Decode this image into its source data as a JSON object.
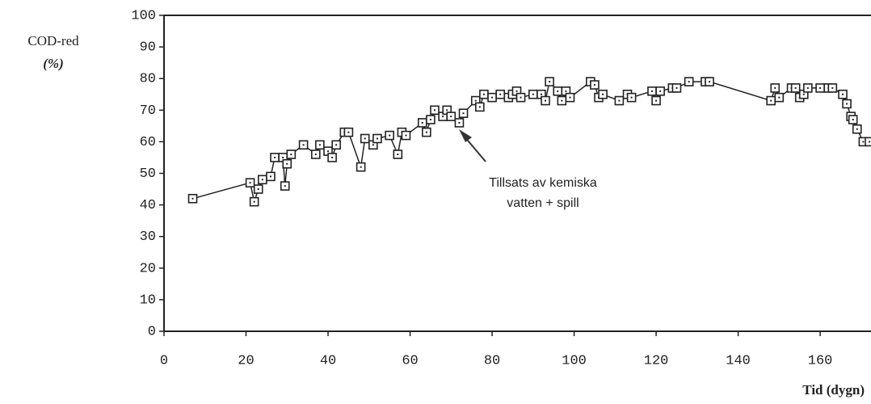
{
  "chart_data": {
    "type": "line",
    "y_label": [
      "COD-red",
      "(%)"
    ],
    "x_label": "Tid (dygn)",
    "annotation": [
      "Tillsats av kemiska",
      "vatten + spill"
    ],
    "series": [
      {
        "name": "COD-red",
        "color": "#222222",
        "x": [
          7,
          21,
          22,
          23,
          24,
          26,
          27,
          29,
          29.5,
          30,
          31,
          34,
          37,
          38,
          40,
          41,
          42,
          44,
          45,
          48,
          49,
          51,
          52,
          55,
          57,
          58,
          59,
          63,
          64,
          65,
          66,
          68,
          69,
          70,
          72,
          73,
          76,
          77,
          78,
          80,
          82,
          84,
          85,
          86,
          87,
          90,
          92,
          93,
          94,
          96,
          97,
          98,
          99,
          104,
          105,
          106,
          107,
          111,
          113,
          114,
          119,
          120,
          121,
          124,
          125,
          128,
          132,
          133,
          148,
          149,
          150,
          153,
          154,
          155,
          156,
          157,
          160,
          162,
          163,
          165.5,
          166.5,
          167.5,
          168,
          169,
          170.5,
          172
        ],
        "values": [
          42,
          47,
          41,
          45,
          48,
          49,
          55,
          55,
          46,
          53,
          56,
          59,
          56,
          59,
          57,
          55,
          59,
          63,
          63,
          52,
          61,
          59,
          61,
          62,
          56,
          63,
          62,
          66,
          63,
          67,
          70,
          68,
          70,
          68,
          66,
          69,
          73,
          71,
          75,
          74,
          75,
          74,
          75,
          76,
          74,
          75,
          75,
          73,
          79,
          76,
          73,
          76,
          74,
          79,
          78,
          74,
          75,
          73,
          75,
          74,
          76,
          73,
          76,
          77,
          77,
          79,
          79,
          79,
          73,
          77,
          74,
          77,
          77,
          74,
          75,
          77,
          77,
          77,
          77,
          75,
          72,
          68,
          67,
          64,
          60,
          60
        ]
      }
    ],
    "xlim": [
      0,
      172
    ],
    "ylim": [
      0,
      100
    ],
    "xticks": [
      0,
      20,
      40,
      60,
      80,
      100,
      120,
      140,
      160
    ],
    "yticks": [
      0,
      10,
      20,
      30,
      40,
      50,
      60,
      70,
      80,
      90,
      100
    ]
  }
}
